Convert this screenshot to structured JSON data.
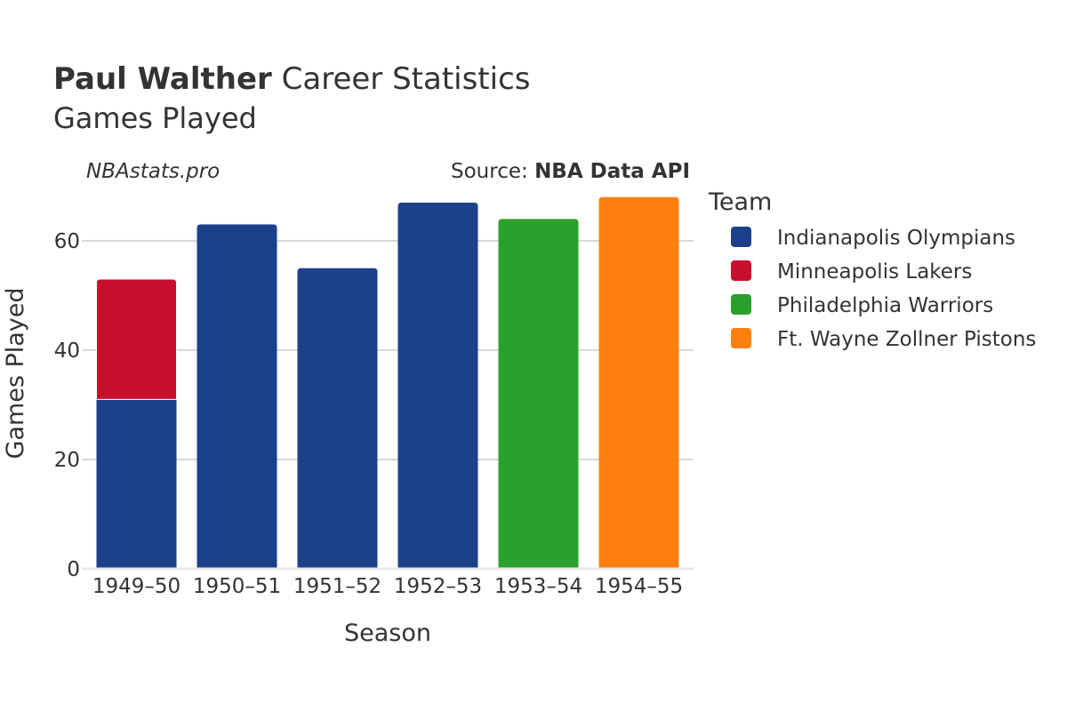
{
  "title_bold": "Paul Walther",
  "title_rest": " Career Statistics",
  "subtitle": "Games Played",
  "credit_site": "NBAstats.pro",
  "credit_source_prefix": "Source: ",
  "credit_source_bold": "NBA Data API",
  "chart_data": {
    "type": "bar",
    "stacked": true,
    "title": "Paul Walther Career Statistics",
    "subtitle": "Games Played",
    "xlabel": "Season",
    "ylabel": "Games Played",
    "ylim": [
      0,
      70
    ],
    "yticks": [
      0,
      20,
      40,
      60
    ],
    "ytick_labels": [
      "0",
      "20",
      "40",
      "60"
    ],
    "grid": true,
    "legend_title": "Team",
    "legend_position": "right",
    "categories": [
      "1949–50",
      "1950–51",
      "1951–52",
      "1952–53",
      "1953–54",
      "1954–55"
    ],
    "series": [
      {
        "name": "Indianapolis Olympians",
        "color": "#1c418a",
        "values": [
          31,
          63,
          55,
          67,
          0,
          0
        ]
      },
      {
        "name": "Minneapolis Lakers",
        "color": "#c8102e",
        "values": [
          22,
          0,
          0,
          0,
          0,
          0
        ]
      },
      {
        "name": "Philadelphia Warriors",
        "color": "#2ca02c",
        "values": [
          0,
          0,
          0,
          0,
          64,
          0
        ]
      },
      {
        "name": "Ft. Wayne Zollner Pistons",
        "color": "#ff7f0e",
        "values": [
          0,
          0,
          0,
          0,
          0,
          68
        ]
      }
    ]
  }
}
